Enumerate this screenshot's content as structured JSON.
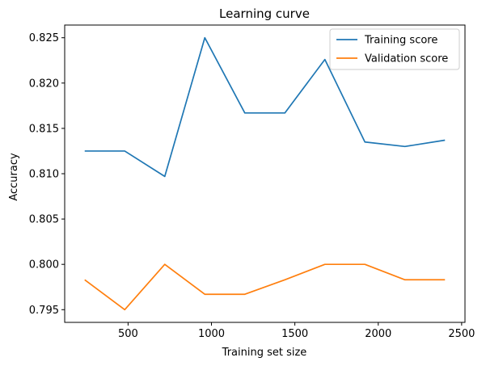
{
  "chart_data": {
    "type": "line",
    "title": "Learning curve",
    "xlabel": "Training set size",
    "ylabel": "Accuracy",
    "xlim": [
      120,
      2520
    ],
    "ylim": [
      0.7936,
      0.8264
    ],
    "xticks": [
      {
        "value": 500,
        "label": "500"
      },
      {
        "value": 1000,
        "label": "1000"
      },
      {
        "value": 1500,
        "label": "1500"
      },
      {
        "value": 2000,
        "label": "2000"
      },
      {
        "value": 2500,
        "label": "2500"
      }
    ],
    "yticks": [
      {
        "value": 0.795,
        "label": "0.795"
      },
      {
        "value": 0.8,
        "label": "0.800"
      },
      {
        "value": 0.805,
        "label": "0.805"
      },
      {
        "value": 0.81,
        "label": "0.810"
      },
      {
        "value": 0.815,
        "label": "0.815"
      },
      {
        "value": 0.82,
        "label": "0.820"
      },
      {
        "value": 0.825,
        "label": "0.825"
      }
    ],
    "x": [
      240,
      480,
      720,
      960,
      1200,
      1440,
      1680,
      1920,
      2160,
      2400
    ],
    "series": [
      {
        "name": "Training score",
        "color": "#1f77b4",
        "values": [
          0.8125,
          0.8125,
          0.8097,
          0.825,
          0.8167,
          0.8167,
          0.8226,
          0.8135,
          0.813,
          0.8137
        ]
      },
      {
        "name": "Validation score",
        "color": "#ff7f0e",
        "values": [
          0.7983,
          0.795,
          0.8,
          0.7967,
          0.7967,
          0.7983,
          0.8,
          0.8,
          0.7983,
          0.7983
        ]
      }
    ],
    "legend": "top-right",
    "grid": false
  }
}
